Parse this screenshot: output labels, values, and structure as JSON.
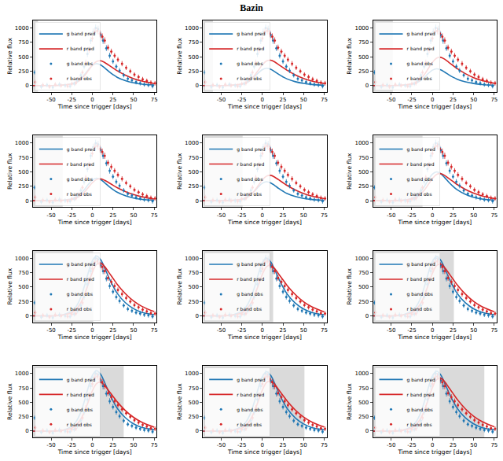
{
  "chart_data": {
    "type": "line",
    "title": "Bazin",
    "x_label": "Time since trigger [days]",
    "y_label": "Relative flux",
    "xlim": [
      -72,
      78
    ],
    "xticks": [
      -50,
      -25,
      0,
      25,
      50,
      75
    ],
    "ylim": [
      -110,
      1130
    ],
    "yticks": [
      0,
      250,
      500,
      750,
      1000
    ],
    "grid": false,
    "legend": "upper left",
    "observations": [
      {
        "name": "g band obs",
        "color": "#1f77b4",
        "marker": "circle",
        "x": [
          -70,
          -62,
          -55,
          -48,
          -40,
          -33,
          -27,
          -22,
          -18,
          -14,
          -10,
          -6,
          -2,
          1,
          4,
          7,
          10,
          13,
          17,
          21,
          25,
          29,
          33,
          38,
          43,
          48,
          53,
          58,
          63,
          68,
          73
        ],
        "values": [
          230,
          -20,
          10,
          -30,
          20,
          0,
          -10,
          30,
          90,
          180,
          330,
          550,
          780,
          930,
          1000,
          980,
          880,
          780,
          650,
          520,
          420,
          330,
          260,
          180,
          120,
          90,
          60,
          40,
          20,
          10,
          -10
        ],
        "errors": [
          40,
          40,
          40,
          40,
          40,
          40,
          40,
          40,
          45,
          45,
          50,
          55,
          60,
          60,
          60,
          60,
          55,
          55,
          50,
          50,
          45,
          45,
          45,
          40,
          40,
          40,
          40,
          40,
          40,
          40,
          40
        ]
      },
      {
        "name": "r band obs",
        "color": "#d62728",
        "marker": "circle",
        "x": [
          -69,
          -60,
          -52,
          -45,
          -38,
          -30,
          -25,
          -20,
          -16,
          -12,
          -8,
          -4,
          0,
          3,
          6,
          9,
          12,
          15,
          19,
          23,
          27,
          31,
          36,
          41,
          46,
          51,
          56,
          61,
          66,
          71,
          76
        ],
        "values": [
          60,
          10,
          -20,
          20,
          0,
          -10,
          30,
          40,
          110,
          230,
          400,
          620,
          820,
          930,
          950,
          900,
          850,
          780,
          660,
          590,
          520,
          450,
          380,
          310,
          250,
          190,
          150,
          110,
          80,
          50,
          40
        ],
        "errors": [
          40,
          40,
          40,
          40,
          40,
          40,
          40,
          40,
          45,
          45,
          50,
          55,
          60,
          60,
          60,
          60,
          55,
          55,
          50,
          50,
          45,
          45,
          45,
          40,
          40,
          40,
          40,
          40,
          40,
          40,
          40
        ]
      }
    ],
    "prediction_x": [
      -75,
      -60,
      -45,
      -35,
      -25,
      -20,
      -15,
      -10,
      -5,
      0,
      5,
      10,
      15,
      20,
      25,
      30,
      40,
      50,
      60,
      75
    ],
    "panels": [
      {
        "shaded": [
          -72,
          -66
        ],
        "series": [
          {
            "name": "g band pred",
            "color": "#1f77b4",
            "line_style": "solid",
            "values": [
              0,
              0,
              0,
              8,
              30,
              57,
              106,
              182,
              274,
              350,
              380,
              357,
              304,
              243,
              190,
              144,
              84,
              46,
              23,
              8
            ]
          },
          {
            "name": "r band pred",
            "color": "#d62728",
            "line_style": "solid",
            "values": [
              0,
              0,
              0,
              9,
              26,
              52,
              95,
              163,
              258,
              353,
              417,
              430,
              400,
              353,
              305,
              258,
              181,
              120,
              77,
              34
            ]
          }
        ]
      },
      {
        "shaded": [
          -72,
          -60
        ],
        "series": [
          {
            "name": "g band pred",
            "color": "#1f77b4",
            "line_style": "solid",
            "values": [
              0,
              0,
              0,
              6,
              24,
              45,
              84,
              144,
              216,
              276,
              300,
              282,
              240,
              192,
              150,
              114,
              66,
              36,
              18,
              6
            ]
          },
          {
            "name": "r band pred",
            "color": "#d62728",
            "line_style": "solid",
            "values": [
              0,
              0,
              0,
              9,
              26,
              53,
              97,
              167,
              264,
              361,
              427,
              440,
              409,
              361,
              312,
              264,
              185,
              123,
              79,
              35
            ]
          }
        ]
      },
      {
        "shaded": [
          -72,
          -48
        ],
        "series": [
          {
            "name": "g band pred",
            "color": "#1f77b4",
            "line_style": "solid",
            "values": [
              0,
              0,
              0,
              6,
              23,
              44,
              81,
              139,
              209,
              267,
              290,
              273,
              232,
              186,
              145,
              110,
              64,
              35,
              17,
              6
            ]
          },
          {
            "name": "r band pred",
            "color": "#d62728",
            "line_style": "solid",
            "values": [
              0,
              0,
              0,
              10,
              29,
              59,
              108,
              186,
              294,
              402,
              475,
              490,
              456,
              402,
              348,
              294,
              206,
              137,
              88,
              39
            ]
          }
        ]
      },
      {
        "shaded": [
          -72,
          -36
        ],
        "series": [
          {
            "name": "g band pred",
            "color": "#1f77b4",
            "line_style": "solid",
            "values": [
              0,
              0,
              0,
              8,
              31,
              59,
              109,
              187,
              281,
              359,
              390,
              367,
              312,
              250,
              195,
              148,
              86,
              47,
              23,
              8
            ]
          },
          {
            "name": "r band pred",
            "color": "#d62728",
            "line_style": "solid",
            "values": [
              0,
              0,
              0,
              8,
              23,
              46,
              84,
              144,
              228,
              312,
              369,
              380,
              353,
              312,
              270,
              228,
              160,
              106,
              68,
              30
            ]
          }
        ]
      },
      {
        "shaded": [
          -72,
          -24
        ],
        "series": [
          {
            "name": "g band pred",
            "color": "#1f77b4",
            "line_style": "solid",
            "values": [
              0,
              0,
              0,
              7,
              26,
              50,
              92,
              158,
              238,
              304,
              330,
              310,
              264,
              211,
              165,
              125,
              73,
              40,
              20,
              7
            ]
          },
          {
            "name": "r band pred",
            "color": "#d62728",
            "line_style": "solid",
            "values": [
              0,
              0,
              0,
              9,
              26,
              53,
              97,
              167,
              264,
              361,
              427,
              440,
              409,
              361,
              312,
              264,
              185,
              123,
              79,
              35
            ]
          }
        ]
      },
      {
        "shaded": [
          -72,
          -12
        ],
        "series": [
          {
            "name": "g band pred",
            "color": "#1f77b4",
            "line_style": "solid",
            "values": [
              0,
              0,
              0,
              10,
              40,
              75,
              140,
              240,
              360,
              460,
              500,
              470,
              400,
              320,
              250,
              190,
              110,
              60,
              30,
              10
            ]
          },
          {
            "name": "r band pred",
            "color": "#d62728",
            "line_style": "solid",
            "values": [
              0,
              0,
              0,
              9,
              28,
              56,
              103,
              179,
              282,
              385,
              456,
              470,
              437,
              385,
              334,
              282,
              197,
              132,
              85,
              38
            ]
          }
        ]
      },
      {
        "shaded": [
          -72,
          1
        ],
        "series": [
          {
            "name": "g band pred",
            "color": "#1f77b4",
            "line_style": "solid",
            "values": [
              0,
              0,
              0,
              21,
              83,
              156,
              291,
              499,
              749,
              957,
              1040,
              978,
              832,
              666,
              520,
              395,
              229,
              125,
              62,
              21
            ]
          },
          {
            "name": "r band pred",
            "color": "#d62728",
            "line_style": "solid",
            "values": [
              0,
              0,
              0,
              18,
              55,
              110,
              202,
              350,
              552,
              754,
              892,
              920,
              856,
              754,
              653,
              552,
              386,
              258,
              166,
              74
            ]
          }
        ]
      },
      {
        "shaded": [
          -72,
          13
        ],
        "series": [
          {
            "name": "g band pred",
            "color": "#1f77b4",
            "line_style": "solid",
            "values": [
              0,
              0,
              0,
              20,
              80,
              150,
              280,
              480,
              720,
              920,
              1000,
              940,
              800,
              640,
              500,
              380,
              220,
              120,
              60,
              20
            ]
          },
          {
            "name": "r band pred",
            "color": "#d62728",
            "line_style": "solid",
            "values": [
              0,
              0,
              0,
              18,
              53,
              106,
              194,
              334,
              528,
              722,
              854,
              880,
              818,
              722,
              625,
              528,
              370,
              246,
              158,
              70
            ]
          }
        ]
      },
      {
        "shaded": [
          -72,
          26
        ],
        "series": [
          {
            "name": "g band pred",
            "color": "#1f77b4",
            "line_style": "solid",
            "values": [
              0,
              0,
              0,
              21,
              82,
              155,
              288,
              494,
              742,
              948,
              1030,
              968,
              824,
              659,
              515,
              391,
              227,
              124,
              62,
              21
            ]
          },
          {
            "name": "r band pred",
            "color": "#d62728",
            "line_style": "solid",
            "values": [
              0,
              0,
              0,
              18,
              54,
              108,
              198,
              342,
              540,
              738,
              873,
              900,
              837,
              738,
              639,
              540,
              378,
              252,
              162,
              72
            ]
          }
        ]
      },
      {
        "shaded": [
          -72,
          38
        ],
        "series": [
          {
            "name": "g band pred",
            "color": "#1f77b4",
            "line_style": "solid",
            "values": [
              0,
              0,
              0,
              21,
              84,
              158,
              294,
              504,
              756,
              966,
              1050,
              987,
              840,
              672,
              525,
              399,
              231,
              126,
              63,
              21
            ]
          },
          {
            "name": "r band pred",
            "color": "#d62728",
            "line_style": "solid",
            "values": [
              0,
              0,
              0,
              17,
              51,
              102,
              187,
              323,
              510,
              697,
              825,
              850,
              791,
              697,
              604,
              510,
              357,
              238,
              153,
              68
            ]
          }
        ]
      },
      {
        "shaded": [
          -72,
          51
        ],
        "series": [
          {
            "name": "g band pred",
            "color": "#1f77b4",
            "line_style": "solid",
            "values": [
              0,
              0,
              0,
              21,
              82,
              155,
              288,
              494,
              742,
              948,
              1030,
              968,
              824,
              659,
              515,
              391,
              227,
              124,
              62,
              21
            ]
          },
          {
            "name": "r band pred",
            "color": "#d62728",
            "line_style": "solid",
            "values": [
              0,
              0,
              0,
              17,
              52,
              104,
              191,
              331,
              522,
              713,
              844,
              870,
              809,
              713,
              618,
              522,
              365,
              244,
              157,
              70
            ]
          }
        ]
      },
      {
        "shaded": [
          -72,
          63
        ],
        "series": [
          {
            "name": "g band pred",
            "color": "#1f77b4",
            "line_style": "solid",
            "values": [
              0,
              0,
              0,
              21,
              83,
              156,
              291,
              499,
              749,
              957,
              1040,
              978,
              832,
              666,
              520,
              395,
              229,
              125,
              62,
              21
            ]
          },
          {
            "name": "r band pred",
            "color": "#d62728",
            "line_style": "solid",
            "values": [
              0,
              0,
              0,
              18,
              55,
              110,
              202,
              350,
              552,
              754,
              892,
              920,
              856,
              754,
              653,
              552,
              386,
              258,
              166,
              74
            ]
          }
        ]
      }
    ]
  }
}
